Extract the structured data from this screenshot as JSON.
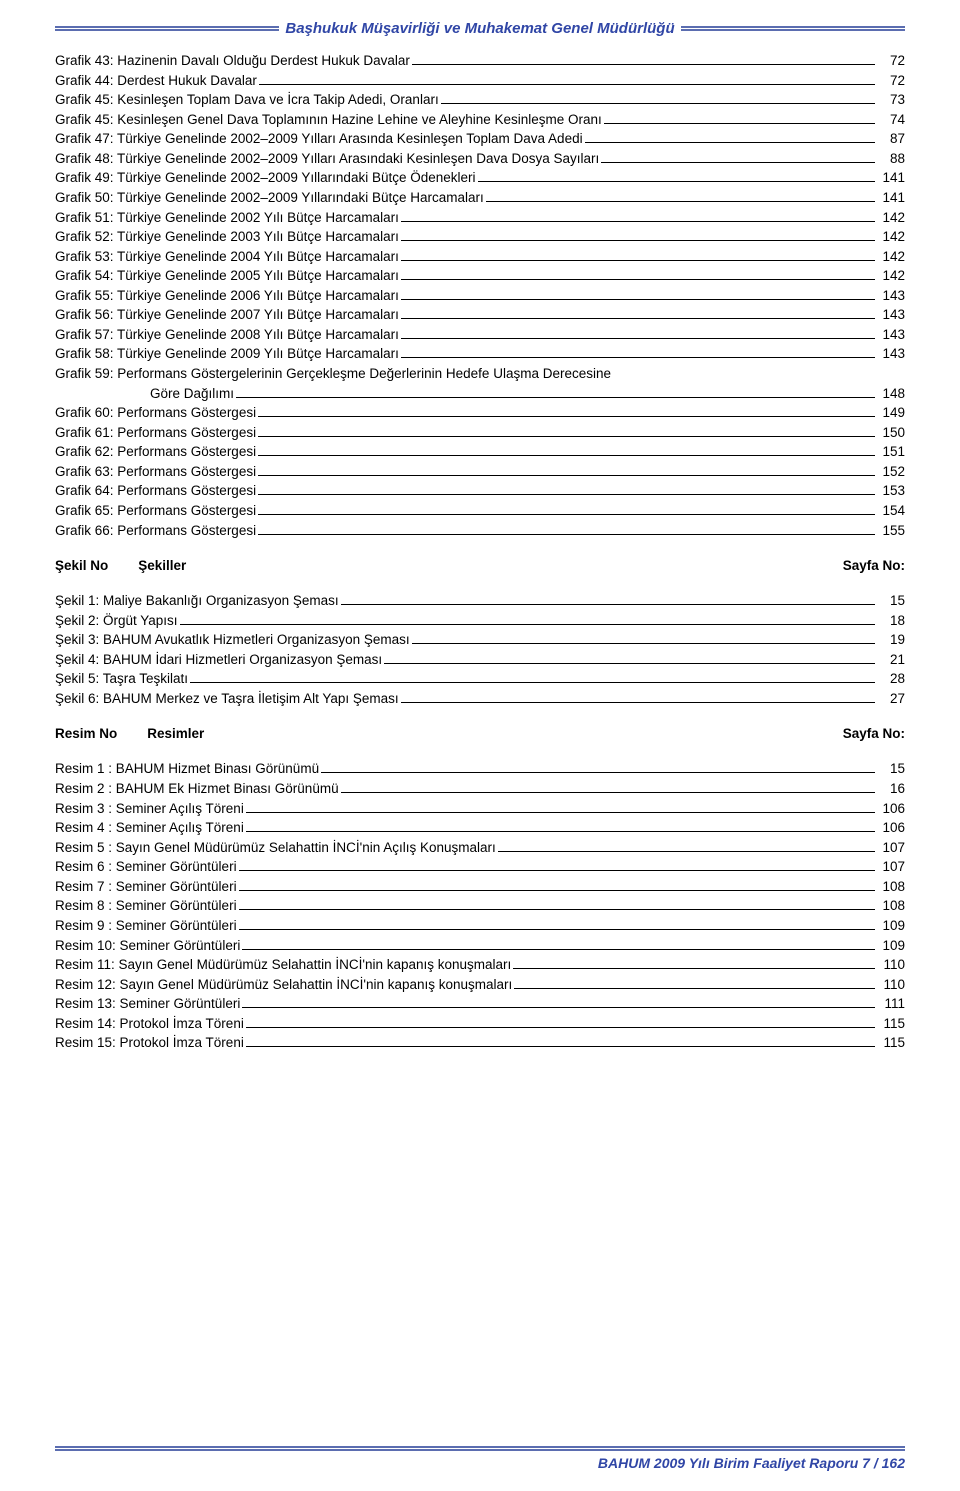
{
  "header": {
    "title": "Başhukuk Müşavirliği ve Muhakemat Genel Müdürlüğü"
  },
  "footer": {
    "text": "BAHUM  2009 Yılı Birim Faaliyet Raporu 7 / 162"
  },
  "colors": {
    "accent": "#3046a6",
    "rule": "#5b6db0",
    "text": "#000000",
    "background": "#ffffff"
  },
  "grafik": [
    {
      "label": "Grafik 43: Hazinenin Davalı Olduğu Derdest Hukuk Davalar",
      "page": "72"
    },
    {
      "label": "Grafik 44: Derdest Hukuk Davalar",
      "page": "72"
    },
    {
      "label": "Grafik 45:  Kesinleşen Toplam Dava ve İcra Takip Adedi, Oranları",
      "page": "73"
    },
    {
      "label": "Grafik 45: Kesinleşen Genel Dava Toplamının Hazine Lehine ve Aleyhine Kesinleşme Oranı",
      "page": "74"
    },
    {
      "label": "Grafik 47: Türkiye Genelinde 2002–2009 Yılları Arasında Kesinleşen Toplam Dava Adedi",
      "page": "87"
    },
    {
      "label": "Grafik 48: Türkiye Genelinde 2002–2009 Yılları Arasındaki Kesinleşen Dava Dosya Sayıları",
      "page": "88"
    },
    {
      "label": "Grafik 49: Türkiye Genelinde 2002–2009 Yıllarındaki Bütçe Ödenekleri",
      "page": "141"
    },
    {
      "label": "Grafik 50: Türkiye Genelinde 2002–2009 Yıllarındaki Bütçe Harcamaları",
      "page": "141"
    },
    {
      "label": "Grafik 51: Türkiye Genelinde 2002 Yılı Bütçe Harcamaları",
      "page": "142"
    },
    {
      "label": "Grafik 52: Türkiye Genelinde 2003 Yılı Bütçe Harcamaları",
      "page": "142"
    },
    {
      "label": "Grafik 53: Türkiye Genelinde 2004 Yılı Bütçe Harcamaları",
      "page": "142"
    },
    {
      "label": "Grafik 54: Türkiye Genelinde 2005 Yılı Bütçe Harcamaları",
      "page": "142"
    },
    {
      "label": "Grafik 55: Türkiye Genelinde 2006 Yılı Bütçe Harcamaları",
      "page": "143"
    },
    {
      "label": "Grafik 56: Türkiye Genelinde 2007 Yılı Bütçe Harcamaları",
      "page": "143"
    },
    {
      "label": "Grafik 57: Türkiye Genelinde 2008 Yılı Bütçe Harcamaları",
      "page": "143"
    },
    {
      "label": "Grafik 58: Türkiye Genelinde 2009 Yılı Bütçe Harcamaları",
      "page": "143"
    },
    {
      "label": "Grafik 59: Performans Göstergelerinin Gerçekleşme Değerlerinin Hedefe Ulaşma Derecesine",
      "page": "",
      "nopage": true
    },
    {
      "label": "Göre Dağılımı",
      "page": "148",
      "indent": true
    },
    {
      "label": "Grafik 60: Performans Göstergesi",
      "page": "149"
    },
    {
      "label": "Grafik 61: Performans Göstergesi",
      "page": "150"
    },
    {
      "label": "Grafik 62: Performans Göstergesi",
      "page": "151"
    },
    {
      "label": "Grafik 63: Performans Göstergesi",
      "page": "152"
    },
    {
      "label": "Grafik 64: Performans Göstergesi",
      "page": "153"
    },
    {
      "label": "Grafik 65: Performans Göstergesi",
      "page": "154"
    },
    {
      "label": "Grafik 66: Performans Göstergesi",
      "page": "155"
    }
  ],
  "sekil_heading": {
    "left": "Şekil  No",
    "mid": "Şekiller",
    "right": "Sayfa No:"
  },
  "sekil": [
    {
      "label": "Şekil 1: Maliye Bakanlığı Organizasyon Şeması",
      "page": "15"
    },
    {
      "label": "Şekil 2: Örgüt Yapısı",
      "page": "18"
    },
    {
      "label": "Şekil 3: BAHUM Avukatlık Hizmetleri Organizasyon Şeması",
      "page": "19"
    },
    {
      "label": "Şekil 4: BAHUM İdari Hizmetleri Organizasyon Şeması",
      "page": "21"
    },
    {
      "label": "Şekil 5: Taşra Teşkilatı",
      "page": "28"
    },
    {
      "label": "Şekil 6: BAHUM Merkez ve Taşra İletişim Alt Yapı Şeması",
      "page": "27"
    }
  ],
  "resim_heading": {
    "left": "Resim  No",
    "mid": "Resimler",
    "right": "Sayfa No:"
  },
  "resim": [
    {
      "label": "Resim   1 : BAHUM Hizmet Binası Görünümü",
      "page": "15"
    },
    {
      "label": "Resim   2 : BAHUM Ek Hizmet Binası Görünümü",
      "page": "16"
    },
    {
      "label": "Resim   3 : Seminer Açılış Töreni",
      "page": "106"
    },
    {
      "label": "Resim   4 : Seminer Açılış Töreni",
      "page": "106"
    },
    {
      "label": "Resim   5 : Sayın Genel Müdürümüz Selahattin İNCİ'nin Açılış Konuşmaları",
      "page": "107"
    },
    {
      "label": "Resim   6 : Seminer Görüntüleri",
      "page": "107"
    },
    {
      "label": "Resim   7 : Seminer Görüntüleri",
      "page": "108"
    },
    {
      "label": "Resim   8 : Seminer Görüntüleri",
      "page": "108"
    },
    {
      "label": "Resim   9 : Seminer Görüntüleri",
      "page": "109"
    },
    {
      "label": "Resim  10: Seminer Görüntüleri",
      "page": "109"
    },
    {
      "label": "Resim  11: Sayın Genel Müdürümüz Selahattin İNCİ'nin kapanış konuşmaları",
      "page": "110"
    },
    {
      "label": "Resim  12: Sayın Genel Müdürümüz Selahattin İNCİ'nin kapanış konuşmaları",
      "page": "110"
    },
    {
      "label": "Resim  13: Seminer Görüntüleri",
      "page": "111"
    },
    {
      "label": "Resim  14: Protokol İmza Töreni",
      "page": "115"
    },
    {
      "label": "Resim  15: Protokol İmza Töreni",
      "page": "115"
    }
  ]
}
